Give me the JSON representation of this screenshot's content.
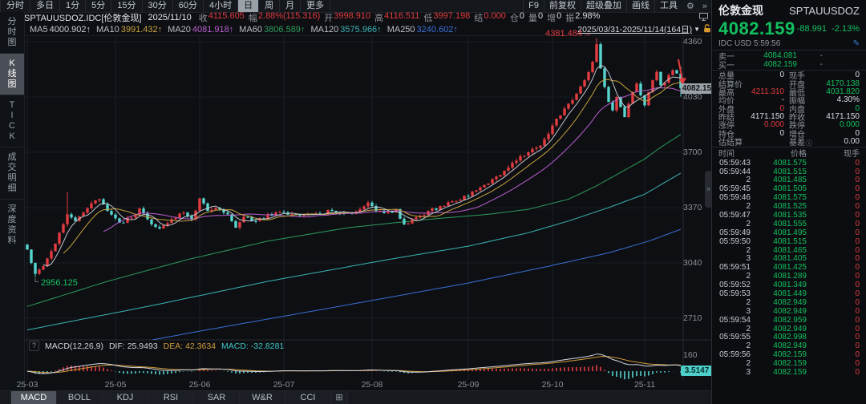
{
  "colors": {
    "red": "#e23c40",
    "green": "#13c05f",
    "white": "#d8dce2",
    "gray": "#8f959e",
    "cyan": "#57d5cf",
    "ma5": "#c9ced6",
    "ma10": "#c7a23f",
    "ma20": "#bb5fd0",
    "ma60": "#2f9c5c",
    "ma120": "#3bb3b3",
    "ma250": "#3a6fd4"
  },
  "toolbar": {
    "periods": [
      "分时",
      "多日",
      "1分",
      "5分",
      "15分",
      "30分",
      "60分",
      "4小时",
      "日",
      "周",
      "月",
      "更多"
    ],
    "selected": "日",
    "right_buttons": [
      "F9",
      "前复权",
      "超级叠加",
      "画线",
      "工具"
    ],
    "gear": "⚙",
    "expand": "»"
  },
  "info_bar": {
    "symbol": "SPTAUUSDOZ.IDC[伦敦金现]",
    "date": "2025/11/10",
    "fields": [
      [
        "收",
        "4115.605",
        "red"
      ],
      [
        "幅",
        "2.88%(115.316)",
        "red"
      ],
      [
        "开",
        "3998.910",
        "red"
      ],
      [
        "高",
        "4116.511",
        "red"
      ],
      [
        "低",
        "3997.198",
        "red"
      ],
      [
        "结",
        "0.000",
        "red"
      ],
      [
        "仓",
        "0",
        "white"
      ],
      [
        "量",
        "0",
        "white"
      ],
      [
        "增",
        "0",
        "white"
      ],
      [
        "振",
        "2.98%",
        "white"
      ]
    ]
  },
  "range_selector": {
    "text": "2025/03/31-2025/11/14(164日)",
    "caret": "▼"
  },
  "ma_bar": [
    [
      "MA5",
      "4000.902",
      "ma5"
    ],
    [
      "MA10",
      "3991.432",
      "ma10"
    ],
    [
      "MA20",
      "4081.918",
      "ma20"
    ],
    [
      "MA60",
      "3806.589",
      "ma60"
    ],
    [
      "MA120",
      "3575.966",
      "ma120"
    ],
    [
      "MA250",
      "3240.602",
      "ma250"
    ]
  ],
  "ma_arrow": "↑",
  "sidebar": {
    "items": [
      "分时图",
      "K线图",
      "TICK",
      "成交明细",
      "深度资料"
    ],
    "selected_index": 1
  },
  "axis": {
    "price_ticks": [
      4360,
      4030,
      3700,
      3370,
      3040,
      2710
    ],
    "months": [
      {
        "label": "25-03",
        "day": 0
      },
      {
        "label": "25-05",
        "day": 22
      },
      {
        "label": "25-06",
        "day": 43
      },
      {
        "label": "25-07",
        "day": 64
      },
      {
        "label": "25-08",
        "day": 86
      },
      {
        "label": "25-09",
        "day": 110
      },
      {
        "label": "25-10",
        "day": 131
      },
      {
        "label": "25-11",
        "day": 154
      }
    ],
    "price_tag": "4082.15",
    "macd_top_label": "160",
    "macd_tag": "3.5147"
  },
  "annotations": {
    "high": {
      "day": 142,
      "price": 4381.484,
      "label": "4381.484",
      "arrow": "→"
    },
    "low": {
      "day": 2,
      "price": 2956.125,
      "label": "2956.125"
    }
  },
  "chart_data": {
    "type": "candlestick",
    "symbol": "SPTAUUSDOZ",
    "title": "伦敦金现 日K 2025/03/31-2025/11/14 (164日)",
    "days": 164,
    "price_range_shown": [
      2710,
      4360
    ],
    "close_waypoints": [
      [
        0,
        3120
      ],
      [
        1,
        3040
      ],
      [
        2,
        2975
      ],
      [
        4,
        3020
      ],
      [
        6,
        3110
      ],
      [
        8,
        3220
      ],
      [
        10,
        3330
      ],
      [
        12,
        3290
      ],
      [
        14,
        3340
      ],
      [
        16,
        3395
      ],
      [
        18,
        3420
      ],
      [
        20,
        3350
      ],
      [
        23,
        3280
      ],
      [
        26,
        3310
      ],
      [
        28,
        3365
      ],
      [
        30,
        3300
      ],
      [
        33,
        3245
      ],
      [
        36,
        3300
      ],
      [
        39,
        3340
      ],
      [
        41,
        3300
      ],
      [
        43,
        3425
      ],
      [
        45,
        3350
      ],
      [
        48,
        3360
      ],
      [
        50,
        3330
      ],
      [
        52,
        3250
      ],
      [
        54,
        3315
      ],
      [
        57,
        3290
      ],
      [
        60,
        3330
      ],
      [
        64,
        3340
      ],
      [
        68,
        3325
      ],
      [
        72,
        3335
      ],
      [
        76,
        3350
      ],
      [
        80,
        3340
      ],
      [
        83,
        3360
      ],
      [
        85,
        3400
      ],
      [
        87,
        3350
      ],
      [
        90,
        3345
      ],
      [
        92,
        3360
      ],
      [
        94,
        3270
      ],
      [
        96,
        3300
      ],
      [
        100,
        3350
      ],
      [
        104,
        3380
      ],
      [
        107,
        3410
      ],
      [
        110,
        3440
      ],
      [
        113,
        3490
      ],
      [
        116,
        3540
      ],
      [
        119,
        3590
      ],
      [
        122,
        3650
      ],
      [
        125,
        3700
      ],
      [
        128,
        3740
      ],
      [
        131,
        3860
      ],
      [
        133,
        3920
      ],
      [
        135,
        3990
      ],
      [
        137,
        4050
      ],
      [
        139,
        4130
      ],
      [
        141,
        4240
      ],
      [
        142,
        4345
      ],
      [
        143,
        4200
      ],
      [
        144,
        4090
      ],
      [
        145,
        4000
      ],
      [
        146,
        3950
      ],
      [
        147,
        4030
      ],
      [
        148,
        3970
      ],
      [
        149,
        3910
      ],
      [
        150,
        3990
      ],
      [
        151,
        4060
      ],
      [
        152,
        4110
      ],
      [
        153,
        4040
      ],
      [
        154,
        3980
      ],
      [
        155,
        4060
      ],
      [
        156,
        4130
      ],
      [
        157,
        4180
      ],
      [
        158,
        4100
      ],
      [
        159,
        4115.605
      ],
      [
        160,
        4160
      ],
      [
        161,
        4190
      ],
      [
        162,
        4171.15
      ],
      [
        163,
        4082.159
      ]
    ],
    "overrides": {
      "2": {
        "low": 2956.125
      },
      "10": {
        "high": 3462
      },
      "142": {
        "high": 4381.484
      },
      "163": {
        "open": 4170.138,
        "high": 4211.31,
        "low": 4031.82,
        "close": 4082.159
      }
    },
    "ma_overlays": {
      "ma60": [
        [
          0,
          2780
        ],
        [
          20,
          2930
        ],
        [
          40,
          3060
        ],
        [
          60,
          3170
        ],
        [
          80,
          3250
        ],
        [
          100,
          3300
        ],
        [
          115,
          3330
        ],
        [
          125,
          3360
        ],
        [
          135,
          3420
        ],
        [
          142,
          3500
        ],
        [
          148,
          3580
        ],
        [
          154,
          3660
        ],
        [
          158,
          3730
        ],
        [
          163,
          3806.589
        ]
      ],
      "ma120": [
        [
          0,
          2640
        ],
        [
          30,
          2780
        ],
        [
          60,
          2930
        ],
        [
          90,
          3060
        ],
        [
          110,
          3140
        ],
        [
          125,
          3220
        ],
        [
          135,
          3290
        ],
        [
          145,
          3370
        ],
        [
          154,
          3450
        ],
        [
          163,
          3575.966
        ]
      ],
      "ma250": [
        [
          0,
          2440
        ],
        [
          40,
          2620
        ],
        [
          80,
          2790
        ],
        [
          110,
          2920
        ],
        [
          130,
          3020
        ],
        [
          145,
          3100
        ],
        [
          155,
          3170
        ],
        [
          163,
          3240.602
        ]
      ]
    }
  },
  "macd_pane": {
    "q": "?",
    "name": "MACD(12,26,9)",
    "dif": "DIF: 25.9493",
    "dea": "DEA: 42.3634",
    "macd": "MACD: -32.8281"
  },
  "indicator_tabs": {
    "tabs": [
      "MACD",
      "BOLL",
      "KDJ",
      "RSI",
      "SAR",
      "W&R",
      "CCI"
    ],
    "selected": "MACD",
    "add": "⊞"
  },
  "panel": {
    "name": "伦敦金现",
    "code": "SPTAUUSDOZ",
    "price": "4082.159",
    "change": "-88.991",
    "change_pct": "-2.13%",
    "meta": "IDC USD 5:59:56",
    "pencil": "✎",
    "bid_ask": [
      {
        "l": "卖一",
        "v": "4084.081",
        "q": "-"
      },
      {
        "l": "买一",
        "v": "4082.159",
        "q": "-"
      }
    ],
    "grid": [
      [
        {
          "l": "总量",
          "v": "0",
          "c": "white"
        },
        {
          "l": "现手",
          "v": "0",
          "c": "white"
        }
      ],
      [
        {
          "l": "结算价",
          "v": "",
          "c": "white"
        },
        {
          "l": "开盘",
          "v": "4170.138",
          "c": "green"
        }
      ],
      [
        {
          "l": "最高",
          "v": "4211.310",
          "c": "red"
        },
        {
          "l": "最低",
          "v": "4031.820",
          "c": "green"
        }
      ],
      [
        {
          "l": "均价",
          "v": "-",
          "c": "white"
        },
        {
          "l": "振幅",
          "v": "4.30%",
          "c": "white"
        }
      ],
      [
        {
          "l": "外盘",
          "v": "0",
          "c": "red"
        },
        {
          "l": "内盘",
          "v": "0",
          "c": "green"
        }
      ],
      [
        {
          "l": "昨结",
          "v": "4171.150",
          "c": "white"
        },
        {
          "l": "昨收",
          "v": "4171.150",
          "c": "white"
        }
      ],
      [
        {
          "l": "涨停",
          "v": "0.000",
          "c": "red"
        },
        {
          "l": "跌停",
          "v": "0.000",
          "c": "green"
        }
      ],
      [
        {
          "l": "持仓",
          "v": "0",
          "c": "white"
        },
        {
          "l": "增仓",
          "v": "0",
          "c": "white"
        }
      ],
      [
        {
          "l": "估结算",
          "v": "",
          "c": "white"
        },
        {
          "l": "基差",
          "icon": "ⓘ",
          "v": "0.00",
          "c": "white"
        }
      ]
    ],
    "ts_header": [
      "时间",
      "价格",
      "现手"
    ],
    "ts_rows": [
      [
        "05:59:43",
        "4081.575",
        "0"
      ],
      [
        "05:59:44",
        "4081.515",
        "0"
      ],
      [
        "2",
        "4081.485",
        "0"
      ],
      [
        "05:59:45",
        "4081.505",
        "0"
      ],
      [
        "05:59:46",
        "4081.575",
        "0"
      ],
      [
        "2",
        "4081.525",
        "0"
      ],
      [
        "05:59:47",
        "4081.535",
        "0"
      ],
      [
        "2",
        "4081.555",
        "0"
      ],
      [
        "05:59:49",
        "4081.495",
        "0"
      ],
      [
        "05:59:50",
        "4081.515",
        "0"
      ],
      [
        "2",
        "4081.465",
        "0"
      ],
      [
        "3",
        "4081.405",
        "0"
      ],
      [
        "05:59:51",
        "4081.425",
        "0"
      ],
      [
        "2",
        "4081.289",
        "0"
      ],
      [
        "05:59:52",
        "4081.349",
        "0"
      ],
      [
        "05:59:53",
        "4081.449",
        "0"
      ],
      [
        "2",
        "4082.949",
        "0"
      ],
      [
        "3",
        "4082.949",
        "0"
      ],
      [
        "05:59:54",
        "4082.959",
        "0"
      ],
      [
        "2",
        "4082.949",
        "0"
      ],
      [
        "05:59:55",
        "4082.998",
        "0"
      ],
      [
        "2",
        "4082.949",
        "0"
      ],
      [
        "05:59:56",
        "4082.159",
        "0"
      ],
      [
        "2",
        "4082.159",
        "0"
      ],
      [
        "3",
        "4082.159",
        "0"
      ]
    ]
  }
}
